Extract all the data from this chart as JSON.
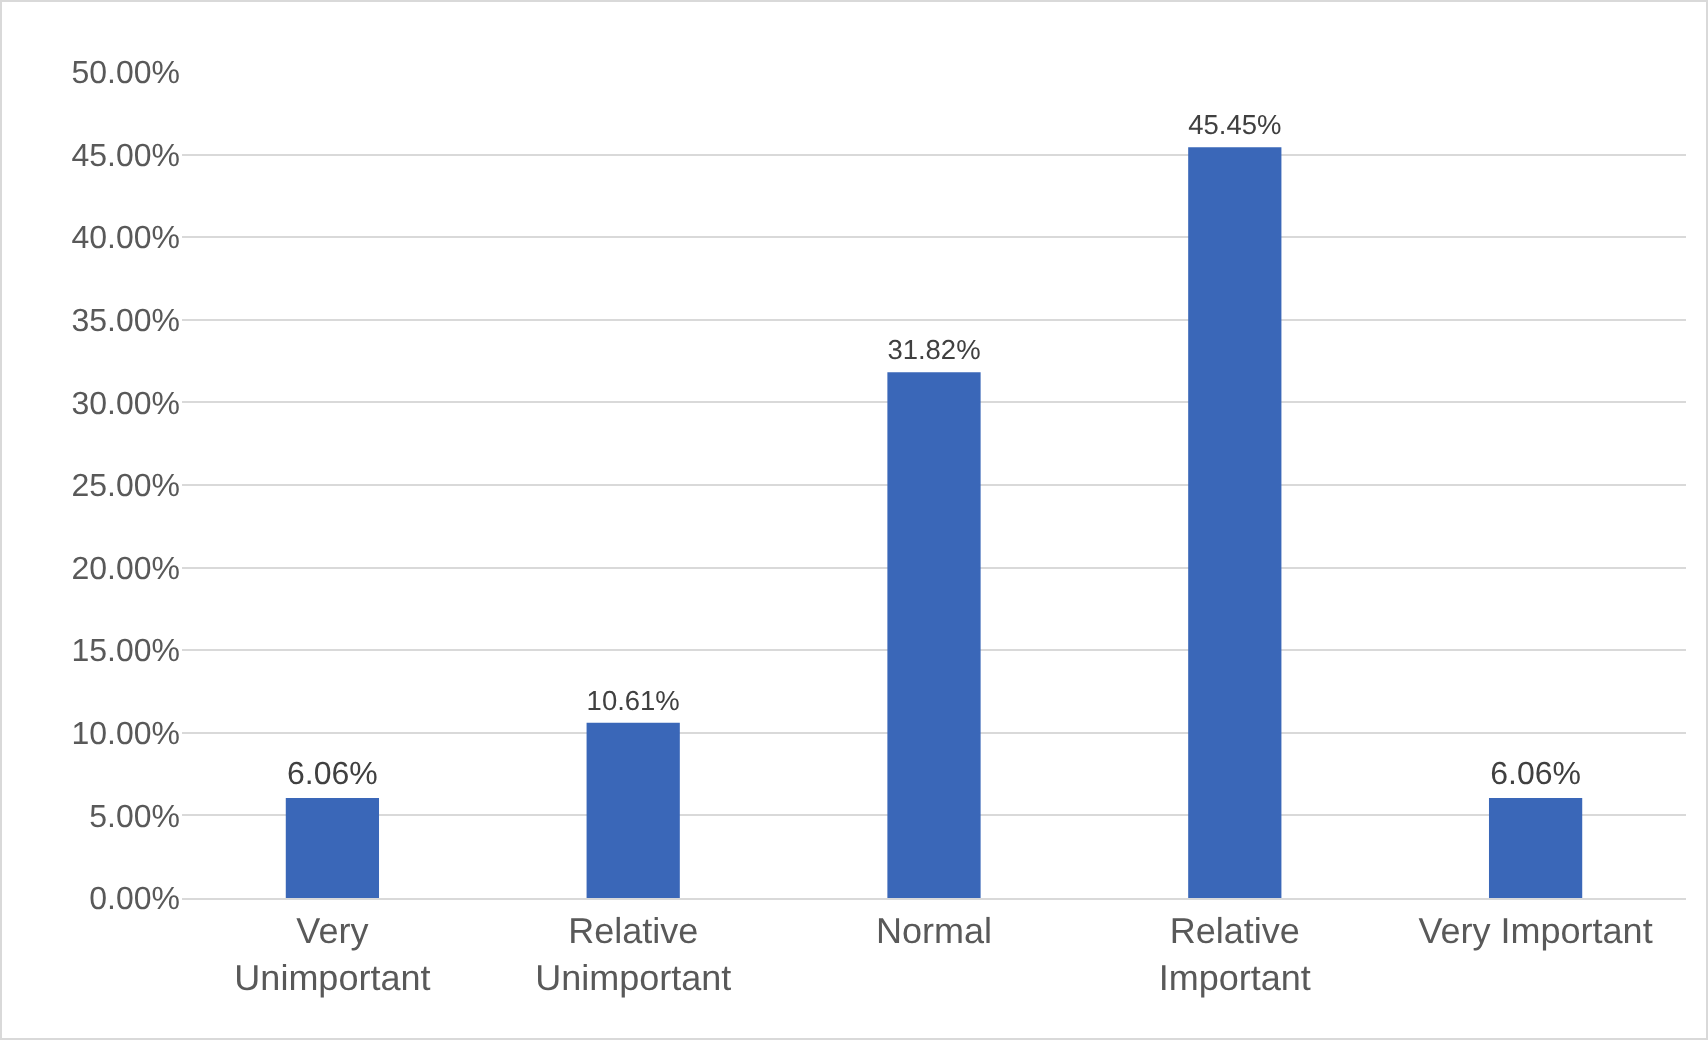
{
  "chart_data": {
    "type": "bar",
    "categories": [
      "Very Unimportant",
      "Relative Unimportant",
      "Normal",
      "Relative Important",
      "Very Important"
    ],
    "values": [
      6.06,
      10.61,
      31.82,
      45.45,
      6.06
    ],
    "value_labels": [
      "6.06%",
      "10.61%",
      "31.82%",
      "45.45%",
      "6.06%"
    ],
    "color": "#3a67b8",
    "ylim": [
      0,
      50
    ],
    "yticks": [
      {
        "value": 0,
        "label": "0.00%"
      },
      {
        "value": 5,
        "label": "5.00%"
      },
      {
        "value": 10,
        "label": "10.00%"
      },
      {
        "value": 15,
        "label": "15.00%"
      },
      {
        "value": 20,
        "label": "20.00%"
      },
      {
        "value": 25,
        "label": "25.00%"
      },
      {
        "value": 30,
        "label": "30.00%"
      },
      {
        "value": 35,
        "label": "35.00%"
      },
      {
        "value": 40,
        "label": "40.00%"
      },
      {
        "value": 45,
        "label": "45.00%"
      },
      {
        "value": 50,
        "label": "50.00%"
      }
    ],
    "grid": "y",
    "legend": false
  }
}
